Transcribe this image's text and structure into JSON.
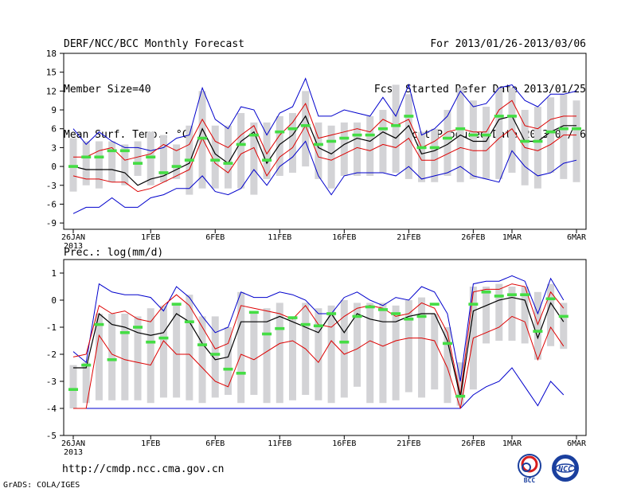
{
  "header": {
    "left": [
      "DERF/NCC/BCC Monthly Forecast",
      "Member Size=40",
      "Mean Surf. Temp.: °C"
    ],
    "right": [
      "For 2013/01/26-2013/03/06",
      "Fcst Started Refer Date 2013/01/25",
      "Fcst Produced Date 2013/01/26"
    ]
  },
  "footer": {
    "url": "http://cmdp.ncc.cma.gov.cn",
    "grads": "GrADS: COLA/IGES",
    "logo_bcc": "BCC",
    "logo_ncc": "NCC"
  },
  "colors": {
    "spread": "#0000cc",
    "band": "#dd0000",
    "median": "#000000",
    "box": "#d3d3d6",
    "obs": "#44dd44"
  },
  "chart_data": [
    {
      "type": "line",
      "title": "Mean Surf. Temp.: °C",
      "x_tick_labels": [
        "26JAN",
        "1FEB",
        "6FEB",
        "11FEB",
        "16FEB",
        "21FEB",
        "26FEB",
        "1MAR",
        "6MAR"
      ],
      "x_tick_days": [
        0,
        6,
        11,
        16,
        21,
        26,
        31,
        34,
        39
      ],
      "x_year_label": "2013",
      "ylim": [
        -10,
        18
      ],
      "yticks": [
        -9,
        -6,
        -3,
        0,
        3,
        6,
        9,
        12,
        15,
        18
      ],
      "series": [
        {
          "name": "max",
          "values": [
            6,
            3.5,
            5.5,
            4,
            3,
            3,
            2.5,
            3,
            4.5,
            5,
            12.5,
            7.5,
            6,
            9.5,
            9,
            5,
            8.5,
            9.5,
            14,
            8,
            8,
            9,
            8.5,
            8,
            11,
            8,
            13,
            5,
            6,
            8,
            12,
            9.5,
            10,
            12.5,
            13,
            10.5,
            9.5,
            11.5,
            11.5,
            12
          ]
        },
        {
          "name": "upper",
          "values": [
            1.5,
            1.5,
            2.5,
            3,
            1,
            1.5,
            2,
            3.5,
            2.5,
            3.5,
            7.5,
            4,
            3,
            5,
            6.5,
            2,
            5,
            7,
            10,
            4.5,
            5,
            5.5,
            6,
            5.5,
            7.5,
            6.5,
            7.5,
            3,
            4,
            5.5,
            6,
            5.5,
            5.5,
            9,
            10.5,
            6.5,
            6,
            7.5,
            8,
            8
          ]
        },
        {
          "name": "median",
          "values": [
            0,
            -0.5,
            -0.5,
            -0.5,
            -1,
            -3,
            -2,
            -1.5,
            -0.5,
            0.5,
            6,
            2,
            0.5,
            4,
            5.5,
            0.5,
            3.5,
            5,
            8,
            3,
            2,
            3.5,
            4.5,
            4,
            5.5,
            4.5,
            6.5,
            2,
            2.5,
            3.5,
            5,
            4,
            4,
            7.5,
            8,
            4,
            4,
            5.5,
            6.5,
            6.5
          ]
        },
        {
          "name": "lower",
          "values": [
            -1.5,
            -2,
            -2,
            -2.5,
            -2.5,
            -4,
            -3.5,
            -2.5,
            -1.5,
            -0.5,
            4.5,
            0.5,
            -1,
            2,
            3,
            -1.5,
            1.5,
            3,
            6.5,
            1.5,
            1,
            2,
            3,
            2.5,
            3.5,
            3,
            4.5,
            1,
            1,
            2,
            3,
            2.5,
            2.5,
            4.5,
            6,
            3,
            2.5,
            3.5,
            5,
            5
          ]
        },
        {
          "name": "min",
          "values": [
            -7.5,
            -6.5,
            -6.5,
            -5,
            -6.5,
            -6.5,
            -5,
            -4.5,
            -3.5,
            -3.5,
            -1.5,
            -4,
            -4.5,
            -3.5,
            -0.5,
            -3,
            0,
            1.5,
            4,
            -1.5,
            -4.5,
            -1.5,
            -1,
            -1,
            -1,
            -1.5,
            0,
            -2,
            -1.5,
            -1,
            0,
            -1.5,
            -2,
            -2.5,
            2.5,
            0,
            -1.5,
            -1,
            0.5,
            1
          ]
        },
        {
          "name": "box_top",
          "values": [
            4.5,
            4,
            4,
            4,
            3.5,
            4,
            5.5,
            5,
            3.5,
            6.5,
            12,
            6.5,
            6.5,
            8.5,
            7,
            7,
            8,
            8.5,
            12,
            7,
            6.5,
            7,
            7,
            8,
            9,
            13,
            11.5,
            5.5,
            6,
            9,
            12.5,
            10.5,
            9.5,
            12.5,
            12.5,
            9,
            9.5,
            11,
            11.5,
            10.5
          ]
        },
        {
          "name": "box_bottom",
          "values": [
            -4,
            -3,
            -3.5,
            -2.5,
            -3,
            -1.5,
            -3,
            -2.5,
            -2,
            -4.5,
            -3.5,
            -3.5,
            -3.5,
            -3.5,
            -4.5,
            -2,
            -1.5,
            -1,
            0,
            -2,
            -3.5,
            -1.5,
            -1.5,
            -1.5,
            -1,
            -1,
            -2,
            -2.5,
            -2.5,
            -1.5,
            -2.5,
            -2,
            -2,
            -2,
            -1,
            -3,
            -3.5,
            -1,
            -2,
            -2.5
          ]
        },
        {
          "name": "observation",
          "values": [
            0,
            1.5,
            1.5,
            2.5,
            2.5,
            0.5,
            1.5,
            -1,
            0,
            1,
            4.5,
            1,
            0.5,
            3.5,
            5,
            1,
            5.5,
            6,
            6.5,
            3.5,
            4,
            4.5,
            5,
            5,
            6,
            6.5,
            8,
            3,
            3,
            4.5,
            6,
            5,
            5,
            8,
            8,
            4,
            4,
            5.5,
            6,
            6
          ]
        }
      ]
    },
    {
      "type": "line",
      "title": "Prec.: log(mm/d)",
      "x_tick_labels": [
        "26JAN",
        "1FEB",
        "6FEB",
        "11FEB",
        "16FEB",
        "21FEB",
        "26FEB",
        "1MAR",
        "6MAR"
      ],
      "x_tick_days": [
        0,
        6,
        11,
        16,
        21,
        26,
        31,
        34,
        39
      ],
      "x_year_label": "2013",
      "ylim": [
        -5,
        1.5
      ],
      "yticks": [
        -5,
        -4,
        -3,
        -2,
        -1,
        0,
        1
      ],
      "series": [
        {
          "name": "max",
          "values": [
            -1.9,
            -2.3,
            0.6,
            0.3,
            0.2,
            0.2,
            0.1,
            -0.4,
            0.5,
            0.1,
            -0.6,
            -1.2,
            -1,
            0.3,
            0.1,
            0.1,
            0.3,
            0.2,
            0,
            -0.5,
            -0.5,
            0.1,
            0.3,
            0,
            -0.2,
            0.1,
            0,
            0.5,
            0.3,
            -0.5,
            -3,
            0.6,
            0.7,
            0.7,
            0.9,
            0.7,
            -0.5,
            0.8,
            0
          ]
        },
        {
          "name": "upper",
          "values": [
            -2.1,
            -2,
            -0.2,
            -0.5,
            -0.4,
            -0.7,
            -0.8,
            -0.2,
            0.2,
            -0.2,
            -1,
            -1.8,
            -1.6,
            -0.2,
            -0.3,
            -0.4,
            -0.5,
            -0.7,
            -0.2,
            -0.9,
            -1,
            -0.6,
            -0.3,
            -0.2,
            -0.3,
            -0.6,
            -0.5,
            -0.1,
            -0.3,
            -1.2,
            -3.5,
            0.3,
            0.4,
            0.4,
            0.6,
            0.5,
            -0.9,
            0.3,
            -0.3
          ]
        },
        {
          "name": "median",
          "values": [
            -2.5,
            -2.5,
            -0.5,
            -0.9,
            -1,
            -1.2,
            -1.3,
            -1.2,
            -0.5,
            -0.8,
            -1.6,
            -2.2,
            -2.1,
            -0.8,
            -0.8,
            -0.8,
            -0.6,
            -0.8,
            -1,
            -1.2,
            -0.5,
            -1.2,
            -0.5,
            -0.7,
            -0.8,
            -0.8,
            -0.6,
            -0.5,
            -0.5,
            -1.5,
            -3.6,
            -0.4,
            -0.2,
            0,
            0.1,
            0,
            -1.4,
            -0.1,
            -0.8
          ]
        },
        {
          "name": "lower",
          "values": [
            -4,
            -4,
            -1.3,
            -2,
            -2.2,
            -2.3,
            -2.4,
            -1.5,
            -2,
            -2,
            -2.5,
            -3,
            -3.2,
            -2,
            -2.2,
            -1.9,
            -1.6,
            -1.5,
            -1.8,
            -2.3,
            -1.5,
            -2,
            -1.8,
            -1.5,
            -1.7,
            -1.5,
            -1.4,
            -1.4,
            -1.5,
            -2.5,
            -4,
            -1.4,
            -1.2,
            -1,
            -0.6,
            -0.8,
            -2.2,
            -1,
            -1.7
          ]
        },
        {
          "name": "min",
          "values": [
            -4,
            -4,
            -4,
            -4,
            -4,
            -4,
            -4,
            -4,
            -4,
            -4,
            -4,
            -4,
            -4,
            -4,
            -4,
            -4,
            -4,
            -4,
            -4,
            -4,
            -4,
            -4,
            -4,
            -4,
            -4,
            -4,
            -4,
            -4,
            -4,
            -4,
            -4,
            -3.5,
            -3.2,
            -3,
            -2.5,
            -3.2,
            -3.9,
            -3,
            -3.5
          ]
        },
        {
          "name": "box_top",
          "values": [
            -2.4,
            -2.3,
            -0.5,
            -0.5,
            -0.5,
            -0.6,
            -0.3,
            -0.2,
            -0.1,
            0.2,
            -0.6,
            -0.6,
            -1,
            0.3,
            -0.4,
            -0.3,
            -0.1,
            -0.6,
            -0.1,
            -0.3,
            -0.2,
            0,
            -0.1,
            -0.1,
            -0.1,
            -0.2,
            0,
            0.1,
            -0.5,
            -1,
            -2.3,
            0.5,
            0.5,
            0.6,
            0.5,
            0.5,
            0.3,
            0.6,
            -0.1
          ]
        },
        {
          "name": "box_bottom",
          "values": [
            -4,
            -3.8,
            -3.7,
            -3.7,
            -3.7,
            -3.7,
            -3.8,
            -3.6,
            -3.6,
            -3.7,
            -3.8,
            -3.6,
            -3.5,
            -3.8,
            -3.5,
            -3.8,
            -3.8,
            -3.7,
            -3.5,
            -3.7,
            -3.8,
            -3.6,
            -3.2,
            -3.8,
            -3.8,
            -3.7,
            -3.4,
            -3.6,
            -3.3,
            -3.8,
            -3.9,
            -3.3,
            -1.6,
            -1.5,
            -1.5,
            -1.6,
            -2.2,
            -1.7,
            -1.8
          ]
        },
        {
          "name": "observation",
          "values": [
            -3.3,
            -2.4,
            -0.9,
            -2.2,
            -1.2,
            -1,
            -1.55,
            -1.4,
            -0.15,
            -0.8,
            -1.65,
            -2,
            -2.55,
            -2.7,
            -0.45,
            -1.25,
            -1.05,
            -0.65,
            -0.9,
            -0.95,
            -0.5,
            -1.55,
            -0.6,
            -0.25,
            -0.35,
            -0.5,
            -0.7,
            -0.6,
            -0.15,
            -1.6,
            -3.55,
            -0.15,
            0.3,
            0.15,
            0.2,
            0.2,
            -1.15,
            0.05,
            -0.6
          ]
        }
      ]
    }
  ]
}
